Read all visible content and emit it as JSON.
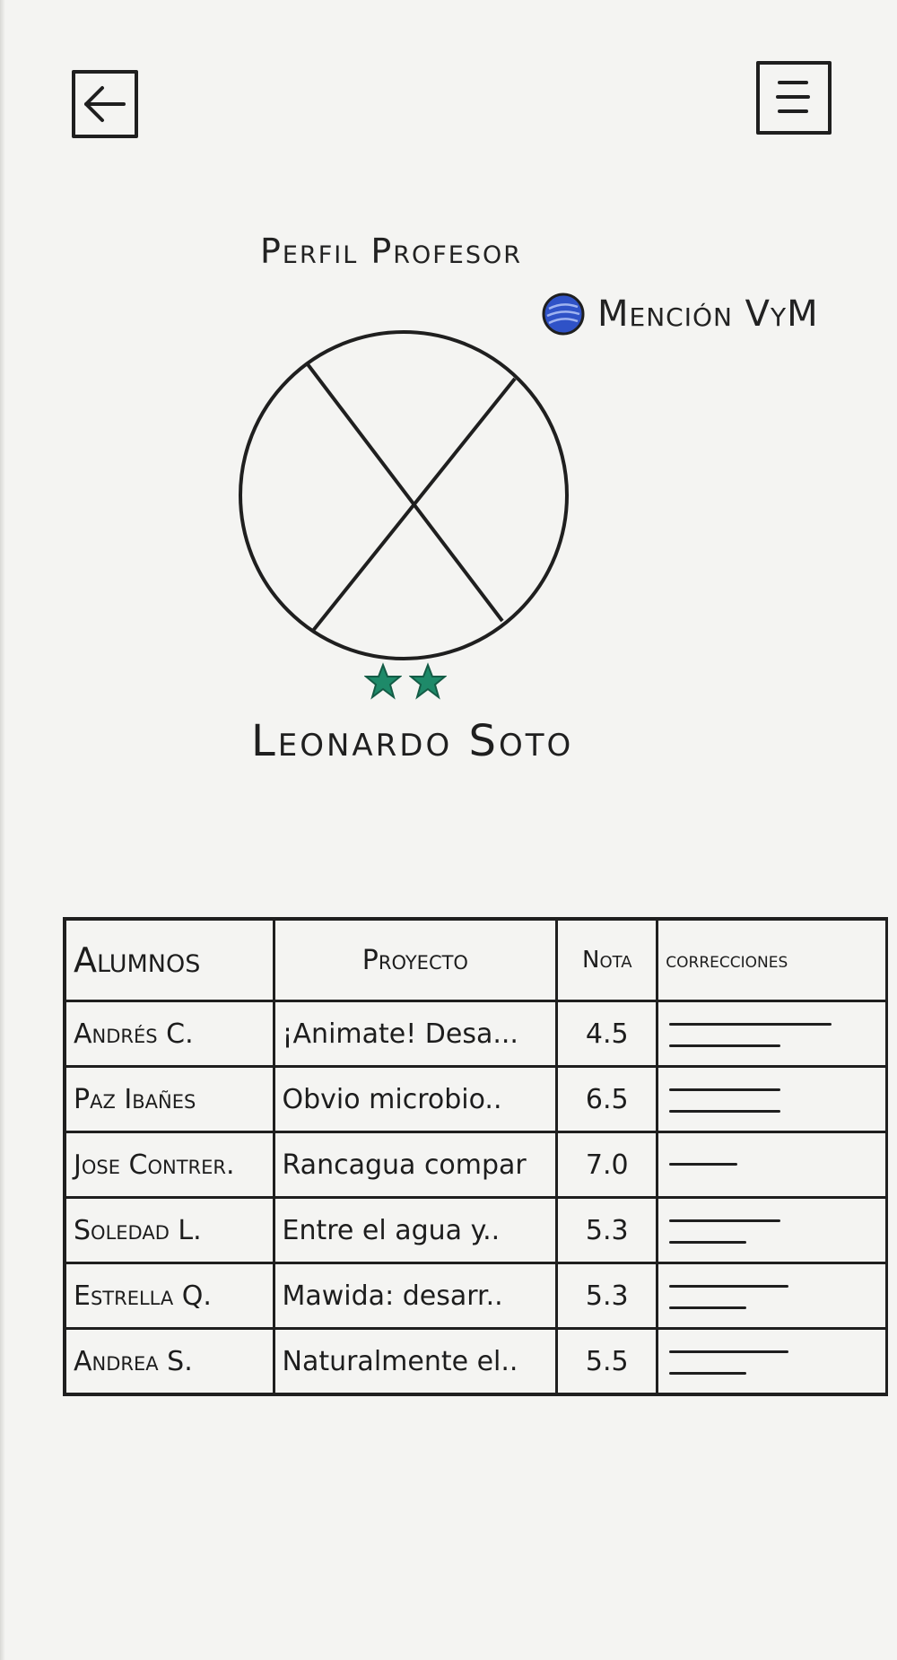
{
  "header": {
    "back_icon": "arrow-left-icon",
    "menu_icon": "hamburger-menu-icon"
  },
  "profile": {
    "title": "Perfil Profesor",
    "badge_label": "Mención VyM",
    "badge_color": "#2f52c7",
    "avatar_icon": "avatar-placeholder-icon",
    "stars_count": 2,
    "star_color": "#1e8a69",
    "name": "Leonardo Soto"
  },
  "table": {
    "headers": [
      "Alumnos",
      "Proyecto",
      "Nota",
      "correcciones"
    ],
    "rows": [
      {
        "student": "Andrés C.",
        "project": "¡Animate! Desa...",
        "grade": "4.5",
        "corrections_lines": [
          0.95,
          0.65
        ]
      },
      {
        "student": "Paz Ibañes",
        "project": "Obvio microbio..",
        "grade": "6.5",
        "corrections_lines": [
          0.65,
          0.65
        ]
      },
      {
        "student": "Jose Contrer.",
        "project": "Rancagua compar",
        "grade": "7.0",
        "corrections_lines": [
          0.4
        ]
      },
      {
        "student": "Soledad L.",
        "project": "Entre el agua y..",
        "grade": "5.3",
        "corrections_lines": [
          0.65,
          0.45
        ]
      },
      {
        "student": "Estrella Q.",
        "project": "Mawida: desarr..",
        "grade": "5.3",
        "corrections_lines": [
          0.7,
          0.45
        ]
      },
      {
        "student": "Andrea S.",
        "project": "Naturalmente el..",
        "grade": "5.5",
        "corrections_lines": [
          0.7,
          0.45
        ]
      }
    ]
  }
}
